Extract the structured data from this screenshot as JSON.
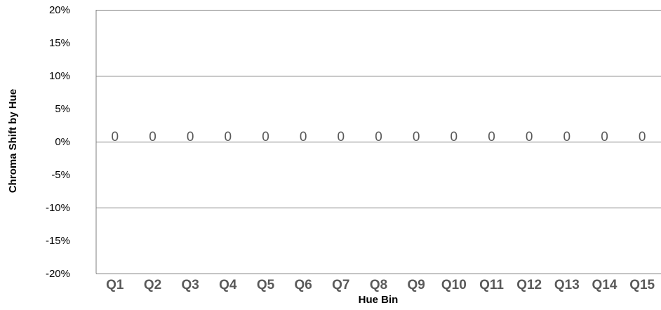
{
  "chart_data": {
    "type": "bar",
    "title": "",
    "xlabel": "Hue Bin",
    "ylabel": "Chroma Shift by Hue",
    "categories": [
      "Q1",
      "Q2",
      "Q3",
      "Q4",
      "Q5",
      "Q6",
      "Q7",
      "Q8",
      "Q9",
      "Q10",
      "Q11",
      "Q12",
      "Q13",
      "Q14",
      "Q15"
    ],
    "values": [
      0,
      0,
      0,
      0,
      0,
      0,
      0,
      0,
      0,
      0,
      0,
      0,
      0,
      0,
      0
    ],
    "data_labels": [
      "0",
      "0",
      "0",
      "0",
      "0",
      "0",
      "0",
      "0",
      "0",
      "0",
      "0",
      "0",
      "0",
      "0",
      "0"
    ],
    "ylim": [
      -0.2,
      0.2
    ],
    "yticks": [
      -0.2,
      -0.15,
      -0.1,
      -0.05,
      0,
      0.05,
      0.1,
      0.15,
      0.2
    ],
    "ytick_labels": [
      "-20%",
      "-15%",
      "-10%",
      "-5%",
      "0%",
      "5%",
      "10%",
      "15%",
      "20%"
    ],
    "grid": true,
    "legend": "none",
    "colors": {
      "grid": "#7f7f7f",
      "tick_text": "#000000",
      "category_text": "#595959",
      "bar": "#4472c4"
    }
  }
}
